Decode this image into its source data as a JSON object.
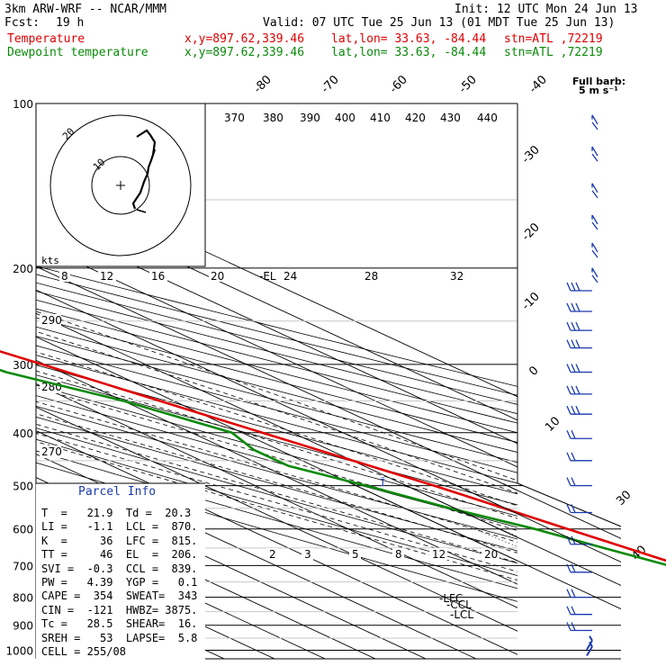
{
  "header": {
    "model": "3km ARW-WRF -- NCAR/MMM",
    "init": "Init: 12 UTC Mon 24 Jun 13",
    "fcst_label": "Fcst:",
    "fcst_value": "19 h",
    "valid": "Valid: 07 UTC Tue 25 Jun 13 (01 MDT Tue 25 Jun 13)",
    "temp_label": "Temperature",
    "dew_label": "Dewpoint temperature",
    "xy": "x,y=897.62,339.46",
    "latlon": "lat,lon= 33.63, -84.44",
    "stn": "stn=ATL ,72219"
  },
  "colors": {
    "temperature": "#e00000",
    "dewpoint": "#0a8a0a",
    "parcel": "#1a3ab0",
    "wind_barbs": "#1a3ab0"
  },
  "chart_data": {
    "type": "line",
    "subtype": "skew-t log-p sounding",
    "ylabel": "",
    "y_scale": "log",
    "pressure_ticks": [
      100,
      200,
      300,
      400,
      500,
      600,
      700,
      800,
      900,
      1000
    ],
    "isotherm_labels_top": [
      "-80",
      "-70",
      "-60",
      "-50",
      "-40"
    ],
    "isotherm_labels_right": [
      "-30",
      "-20",
      "-10",
      "0",
      "10",
      "30",
      "40"
    ],
    "theta_labels": [
      "370",
      "380",
      "390",
      "400",
      "410",
      "420",
      "430",
      "440"
    ],
    "theta_left_labels": [
      "290",
      "280",
      "270"
    ],
    "mixing_ratio_labels": [
      "2",
      "3",
      "5",
      "8",
      "12",
      "20"
    ],
    "wind_speed_labels": [
      "8",
      "12",
      "16",
      "20",
      "24",
      "28",
      "32"
    ],
    "barb_legend": "Full barb:\n5 m s⁻¹",
    "hodograph": {
      "units": "kts",
      "rings": [
        "10",
        "20"
      ]
    },
    "level_markers": [
      "-EL",
      "-LFC",
      "-CCL",
      "-LCL"
    ],
    "series": [
      {
        "name": "Temperature",
        "points": [
          [
            960,
            21.9
          ],
          [
            940,
            24.0
          ],
          [
            910,
            23.0
          ],
          [
            880,
            21.0
          ],
          [
            850,
            19.2
          ],
          [
            800,
            16.0
          ],
          [
            700,
            10.5
          ],
          [
            600,
            3.5
          ],
          [
            500,
            -4.5
          ],
          [
            400,
            -16.0
          ],
          [
            300,
            -30.5
          ],
          [
            250,
            -40.0
          ],
          [
            200,
            -50.5
          ],
          [
            180,
            -56.0
          ],
          [
            160,
            -59.5
          ],
          [
            150,
            -61.0
          ],
          [
            130,
            -64.0
          ],
          [
            115,
            -67.5
          ],
          [
            100,
            -71.5
          ]
        ]
      },
      {
        "name": "Dewpoint temperature",
        "points": [
          [
            960,
            20.3
          ],
          [
            940,
            19.0
          ],
          [
            920,
            18.5
          ],
          [
            900,
            18.0
          ],
          [
            850,
            16.0
          ],
          [
            800,
            14.0
          ],
          [
            750,
            11.5
          ],
          [
            700,
            8.0
          ],
          [
            650,
            2.5
          ],
          [
            600,
            -3.0
          ],
          [
            550,
            -11.0
          ],
          [
            500,
            -18.0
          ],
          [
            460,
            -25.0
          ],
          [
            430,
            -25.0
          ],
          [
            400,
            -22.0
          ],
          [
            350,
            -30.0
          ],
          [
            310,
            -41.0
          ],
          [
            270,
            -46.0
          ],
          [
            230,
            -55.0
          ],
          [
            200,
            -64.0
          ],
          [
            170,
            -70.0
          ],
          [
            150,
            -73.0
          ],
          [
            130,
            -78.0
          ],
          [
            115,
            -80.0
          ],
          [
            100,
            -80.5
          ]
        ]
      }
    ],
    "wind_barb_levels_hpa": [
      105,
      120,
      140,
      160,
      180,
      200,
      220,
      240,
      260,
      280,
      310,
      340,
      370,
      410,
      450,
      500,
      560,
      640,
      720,
      800,
      860,
      920,
      960,
      985
    ]
  },
  "parcel": {
    "title": "Parcel Info",
    "lines": [
      "T  =   21.9  Td =  20.3",
      "LI =   -1.1  LCL =  870.",
      "K  =     36  LFC =  815.",
      "TT =     46  EL  =  206.",
      "SVI =  -0.3  CCL =  839.",
      "PW =   4.39  YGP =   0.1",
      "CAPE =  354  SWEAT=  343",
      "CIN =  -121  HWBZ= 3875.",
      "Tc =   28.5  SHEAR=  16.",
      "SREH =   53  LAPSE=  5.8",
      "CELL = 255/08"
    ]
  }
}
